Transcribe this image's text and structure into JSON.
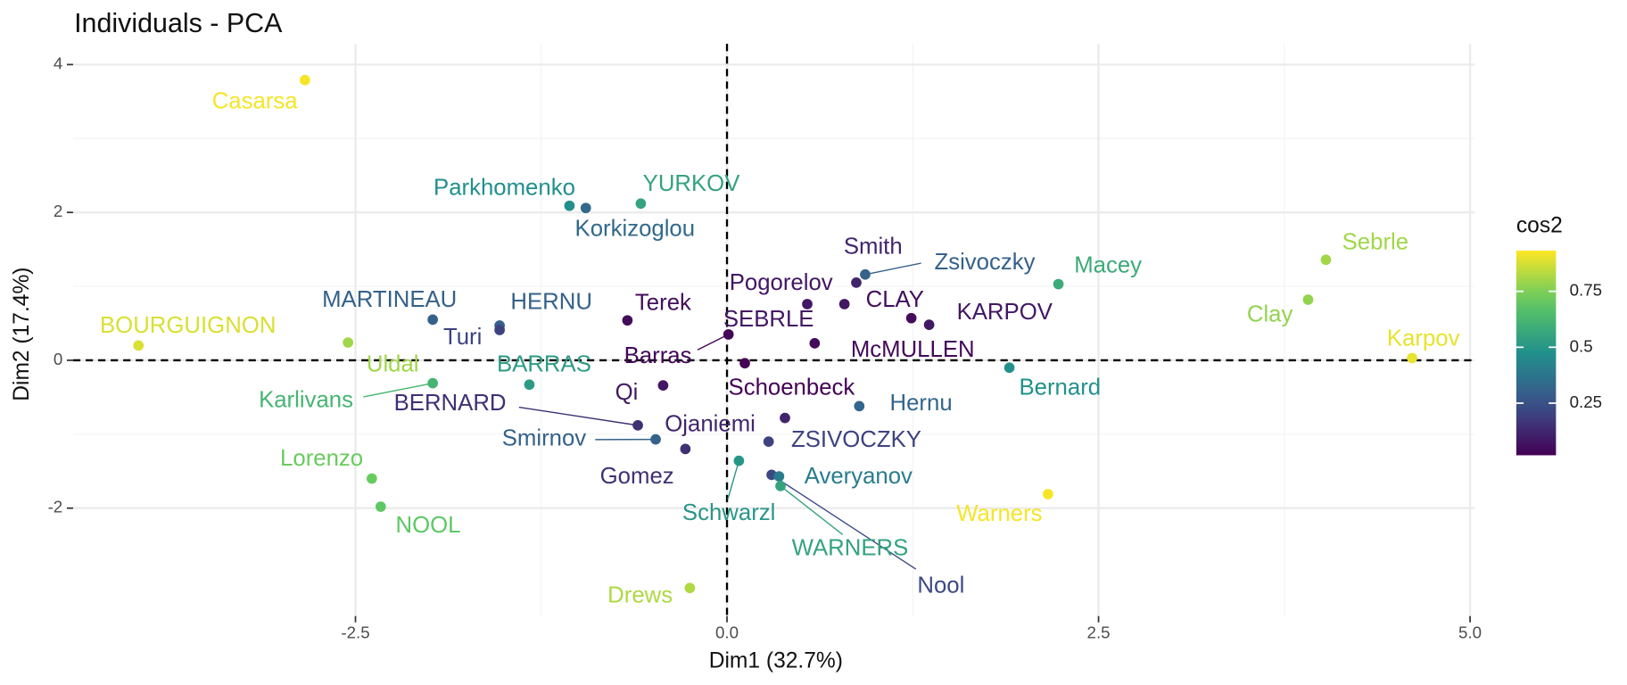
{
  "chart_data": {
    "type": "scatter",
    "title": "Individuals - PCA",
    "x_label": "Dim1 (32.7%)",
    "y_label": "Dim2 (17.4%)",
    "labels": [
      "Casarsa",
      "Parkhomenko",
      "Korkizoglou",
      "YURKOV",
      "Sebrle",
      "Clay",
      "Karpov",
      "Macey",
      "Zsivoczky",
      "Smith",
      "Pogorelov",
      "SEBRLE",
      "CLAY",
      "KARPOV",
      "MARTINEAU",
      "HERNU",
      "Turi",
      "Terek",
      "Barras",
      "BOURGUIGNON",
      "Uldal",
      "McMULLEN",
      "Karlivans",
      "BARRAS",
      "Schoenbeck",
      "Bernard",
      "Qi",
      "Hernu",
      "BERNARD",
      "Ojaniemi",
      "Smirnov",
      "ZSIVOCZKY",
      "Gomez",
      "Schwarzl",
      "Lorenzo",
      "Nool",
      "Averyanov",
      "WARNERS",
      "NOOL",
      "Warners",
      "Drews"
    ],
    "x": [
      -2.84,
      -1.06,
      -0.95,
      -0.58,
      4.03,
      3.91,
      4.61,
      2.23,
      0.93,
      0.87,
      0.54,
      0.79,
      1.24,
      1.36,
      -1.98,
      -1.53,
      -1.53,
      -0.67,
      0.01,
      -3.96,
      -2.55,
      0.59,
      -1.98,
      -1.33,
      0.12,
      1.9,
      -0.43,
      0.89,
      -0.6,
      0.39,
      -0.48,
      0.28,
      -0.28,
      0.08,
      -2.39,
      0.3,
      0.35,
      0.36,
      -2.33,
      2.16,
      -0.25
    ],
    "values": [
      3.79,
      2.09,
      2.06,
      2.12,
      1.36,
      0.82,
      0.03,
      1.03,
      1.16,
      1.05,
      0.76,
      0.76,
      0.57,
      0.48,
      0.55,
      0.47,
      0.41,
      0.54,
      0.35,
      0.2,
      0.24,
      0.23,
      -0.31,
      -0.33,
      -0.04,
      -0.1,
      -0.34,
      -0.62,
      -0.88,
      -0.78,
      -1.07,
      -1.1,
      -1.2,
      -1.36,
      -1.6,
      -1.55,
      -1.57,
      -1.7,
      -1.98,
      -1.81,
      -3.08
    ],
    "cos2": [
      0.92,
      0.47,
      0.33,
      0.55,
      0.8,
      0.78,
      0.9,
      0.58,
      0.3,
      0.12,
      0.08,
      0.08,
      0.05,
      0.08,
      0.3,
      0.3,
      0.2,
      0.05,
      0.03,
      0.88,
      0.8,
      0.04,
      0.62,
      0.52,
      0.02,
      0.48,
      0.08,
      0.32,
      0.15,
      0.12,
      0.3,
      0.2,
      0.15,
      0.5,
      0.72,
      0.22,
      0.4,
      0.55,
      0.7,
      0.92,
      0.82
    ],
    "xlim": [
      -4.4,
      5.03
    ],
    "ylim": [
      -3.46,
      4.28
    ],
    "xticks": [
      -2.5,
      {
        "value": 0,
        "label": "0.0"
      },
      2.5,
      {
        "value": 5,
        "label": "5.0"
      }
    ],
    "yticks": [
      -2,
      0,
      2,
      4
    ],
    "grid": true,
    "hline": 0,
    "vline": 0,
    "colorbar": {
      "title": "cos2",
      "colormap": "viridis",
      "lim": [
        0.017,
        0.932
      ],
      "ticks": [
        0.25,
        0.5,
        0.75
      ]
    }
  }
}
